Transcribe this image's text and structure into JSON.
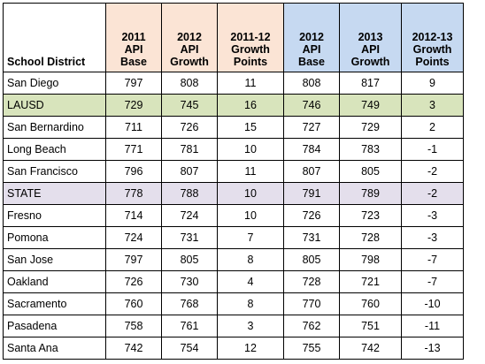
{
  "table": {
    "headers": [
      [
        "School District"
      ],
      [
        "2011",
        "API",
        "Base"
      ],
      [
        "2012",
        "API",
        "Growth"
      ],
      [
        "2011-12",
        "Growth",
        "Points"
      ],
      [
        "2012",
        "API",
        "Base"
      ],
      [
        "2013",
        "API",
        "Growth"
      ],
      [
        "2012-13",
        "Growth",
        "Points"
      ]
    ],
    "header_colors": {
      "orange": "#fbe4d5",
      "blue": "#c6d9f1",
      "highlight_lausd": "#d8e4bc",
      "highlight_state": "#e4dfec"
    },
    "rows": [
      [
        "San Diego",
        "797",
        "808",
        "11",
        "808",
        "817",
        "9"
      ],
      [
        "LAUSD",
        "729",
        "745",
        "16",
        "746",
        "749",
        "3"
      ],
      [
        "San Bernardino",
        "711",
        "726",
        "15",
        "727",
        "729",
        "2"
      ],
      [
        "Long Beach",
        "771",
        "781",
        "10",
        "784",
        "783",
        "-1"
      ],
      [
        "San Francisco",
        "796",
        "807",
        "11",
        "807",
        "805",
        "-2"
      ],
      [
        "STATE",
        "778",
        "788",
        "10",
        "791",
        "789",
        "-2"
      ],
      [
        "Fresno",
        "714",
        "724",
        "10",
        "726",
        "723",
        "-3"
      ],
      [
        "Pomona",
        "724",
        "731",
        "7",
        "731",
        "728",
        "-3"
      ],
      [
        "San Jose",
        "797",
        "805",
        "8",
        "805",
        "798",
        "-7"
      ],
      [
        "Oakland",
        "726",
        "730",
        "4",
        "728",
        "721",
        "-7"
      ],
      [
        "Sacramento",
        "760",
        "768",
        "8",
        "770",
        "760",
        "-10"
      ],
      [
        "Pasadena",
        "758",
        "761",
        "3",
        "762",
        "751",
        "-11"
      ],
      [
        "Santa Ana",
        "742",
        "754",
        "12",
        "755",
        "742",
        "-13"
      ]
    ]
  }
}
